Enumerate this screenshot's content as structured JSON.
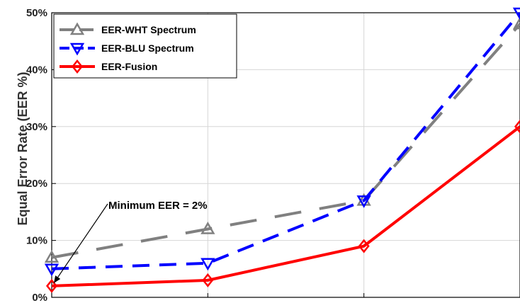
{
  "chart_data": {
    "type": "line",
    "title": "",
    "xlabel": "",
    "ylabel": "Equal Error Rate  (EER %)",
    "x": [
      1,
      2,
      3,
      4
    ],
    "xlim": [
      1,
      4
    ],
    "ylim": [
      0,
      50
    ],
    "yticks": [
      0,
      10,
      20,
      30,
      40,
      50
    ],
    "ytick_labels": [
      "0%",
      "10%",
      "20%",
      "30%",
      "40%",
      "50%"
    ],
    "grid": true,
    "legend_position": "top-left",
    "series": [
      {
        "name": "EER-WHT Spectrum",
        "values": [
          7,
          12,
          17,
          48
        ],
        "color": "#808080",
        "marker": "triangle-up",
        "line": "dashed-long"
      },
      {
        "name": "EER-BLU Spectrum",
        "values": [
          5,
          6,
          17,
          50
        ],
        "color": "#0000ff",
        "marker": "triangle-down",
        "line": "dashed"
      },
      {
        "name": "EER-Fusion",
        "values": [
          2,
          3,
          9,
          30
        ],
        "color": "#ff0000",
        "marker": "diamond",
        "line": "solid"
      }
    ],
    "annotation": {
      "text": "Minimum EER = 2%",
      "x": 1,
      "y": 2
    }
  }
}
